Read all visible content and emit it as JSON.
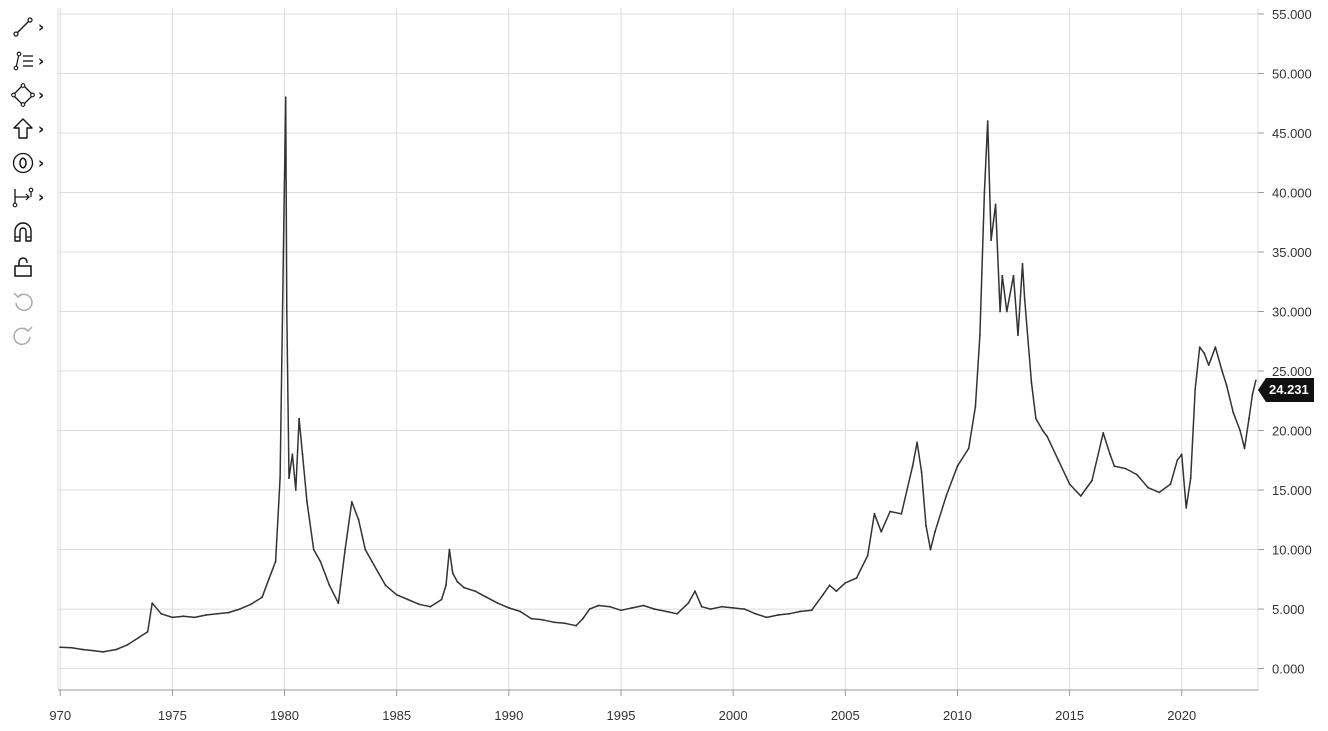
{
  "toolbar": {
    "tools": [
      {
        "icon": "trend-line-icon",
        "has_submenu": true,
        "chevron": "›"
      },
      {
        "icon": "fib-levels-icon",
        "has_submenu": true,
        "chevron": "›"
      },
      {
        "icon": "shapes-icon",
        "has_submenu": true,
        "chevron": "›"
      },
      {
        "icon": "arrow-up-icon",
        "has_submenu": true,
        "chevron": "›"
      },
      {
        "icon": "annotation-icon",
        "has_submenu": true,
        "chevron": "›"
      },
      {
        "icon": "measure-icon",
        "has_submenu": true,
        "chevron": "›"
      },
      {
        "icon": "magnet-icon",
        "has_submenu": false
      },
      {
        "icon": "unlock-icon",
        "has_submenu": false
      },
      {
        "icon": "undo-icon",
        "has_submenu": false,
        "disabled": true
      },
      {
        "icon": "redo-icon",
        "has_submenu": false,
        "disabled": true
      }
    ]
  },
  "colors": {
    "line": "#333333",
    "grid": "#dddddd",
    "price_tag_bg": "#111111",
    "price_tag_text": "#ffffff"
  },
  "chart_data": {
    "type": "line",
    "title": "",
    "xlabel": "",
    "ylabel": "",
    "x_ticks": [
      "970",
      "1975",
      "1980",
      "1985",
      "1990",
      "1995",
      "2000",
      "2005",
      "2010",
      "2015",
      "2020"
    ],
    "y_ticks": [
      "0.000",
      "5.000",
      "10.000",
      "15.000",
      "20.000",
      "25.000",
      "30.000",
      "35.000",
      "40.000",
      "45.000",
      "50.000",
      "55.000"
    ],
    "xlim": [
      1969.9,
      2023.4
    ],
    "ylim": [
      -1.8,
      55.5
    ],
    "y_axis_side": "right",
    "grid": true,
    "last_value_label": "24.231",
    "series": [
      {
        "x": [
          1970.0,
          1970.5,
          1971.0,
          1971.5,
          1971.9,
          1972.5,
          1973.0,
          1973.5,
          1973.9,
          1974.1,
          1974.5,
          1975.0,
          1975.5,
          1976.0,
          1976.5,
          1977.0,
          1977.5,
          1978.0,
          1978.5,
          1979.0,
          1979.3,
          1979.6,
          1979.8,
          1979.95,
          1980.05,
          1980.1,
          1980.2,
          1980.35,
          1980.5,
          1980.65,
          1980.8,
          1981.0,
          1981.3,
          1981.6,
          1982.0,
          1982.4,
          1982.5,
          1982.7,
          1983.0,
          1983.3,
          1983.6,
          1983.9,
          1984.2,
          1984.5,
          1985.0,
          1985.5,
          1986.0,
          1986.5,
          1987.0,
          1987.2,
          1987.35,
          1987.5,
          1987.7,
          1988.0,
          1988.5,
          1989.0,
          1989.5,
          1990.0,
          1990.5,
          1991.0,
          1991.5,
          1992.0,
          1992.5,
          1993.0,
          1993.3,
          1993.6,
          1994.0,
          1994.5,
          1995.0,
          1995.5,
          1996.0,
          1996.5,
          1997.0,
          1997.5,
          1998.0,
          1998.3,
          1998.6,
          1999.0,
          1999.5,
          2000.0,
          2000.5,
          2001.0,
          2001.5,
          2002.0,
          2002.5,
          2003.0,
          2003.5,
          2004.0,
          2004.3,
          2004.6,
          2005.0,
          2005.5,
          2006.0,
          2006.3,
          2006.6,
          2007.0,
          2007.5,
          2008.0,
          2008.2,
          2008.4,
          2008.6,
          2008.8,
          2009.0,
          2009.5,
          2010.0,
          2010.5,
          2010.8,
          2011.0,
          2011.2,
          2011.35,
          2011.5,
          2011.7,
          2011.9,
          2012.0,
          2012.2,
          2012.5,
          2012.7,
          2012.9,
          2013.0,
          2013.3,
          2013.5,
          2013.8,
          2014.0,
          2014.5,
          2015.0,
          2015.5,
          2016.0,
          2016.5,
          2016.8,
          2017.0,
          2017.5,
          2018.0,
          2018.5,
          2019.0,
          2019.5,
          2019.8,
          2020.0,
          2020.2,
          2020.4,
          2020.6,
          2020.8,
          2021.0,
          2021.2,
          2021.5,
          2021.8,
          2022.0,
          2022.3,
          2022.6,
          2022.8,
          2023.0,
          2023.15,
          2023.3
        ],
        "y": [
          1.8,
          1.75,
          1.6,
          1.5,
          1.4,
          1.6,
          2.0,
          2.6,
          3.1,
          5.5,
          4.6,
          4.3,
          4.4,
          4.3,
          4.5,
          4.6,
          4.7,
          5.0,
          5.4,
          6.0,
          7.5,
          9.0,
          16.0,
          35.0,
          48.0,
          30.0,
          16.0,
          18.0,
          15.0,
          21.0,
          18.0,
          14.0,
          10.0,
          9.0,
          7.0,
          5.5,
          7.0,
          10.0,
          14.0,
          12.5,
          10.0,
          9.0,
          8.0,
          7.0,
          6.2,
          5.8,
          5.4,
          5.2,
          5.8,
          7.0,
          10.0,
          8.0,
          7.3,
          6.8,
          6.5,
          6.0,
          5.5,
          5.1,
          4.8,
          4.2,
          4.1,
          3.9,
          3.8,
          3.6,
          4.2,
          5.0,
          5.3,
          5.2,
          4.9,
          5.1,
          5.3,
          5.0,
          4.8,
          4.6,
          5.5,
          6.5,
          5.2,
          5.0,
          5.2,
          5.1,
          5.0,
          4.6,
          4.3,
          4.5,
          4.6,
          4.8,
          4.9,
          6.2,
          7.0,
          6.5,
          7.2,
          7.6,
          9.5,
          13.0,
          11.5,
          13.2,
          13.0,
          17.0,
          19.0,
          16.5,
          12.0,
          10.0,
          11.5,
          14.5,
          17.0,
          18.5,
          22.0,
          28.0,
          40.0,
          46.0,
          36.0,
          39.0,
          30.0,
          33.0,
          30.0,
          33.0,
          28.0,
          34.0,
          31.0,
          24.0,
          21.0,
          20.0,
          19.5,
          17.5,
          15.5,
          14.5,
          15.8,
          19.8,
          18.0,
          17.0,
          16.8,
          16.3,
          15.2,
          14.8,
          15.5,
          17.5,
          18.0,
          13.5,
          16.0,
          23.5,
          27.0,
          26.5,
          25.5,
          27.0,
          25.0,
          23.8,
          21.5,
          20.0,
          18.5,
          21.0,
          23.0,
          24.2
        ]
      }
    ]
  }
}
